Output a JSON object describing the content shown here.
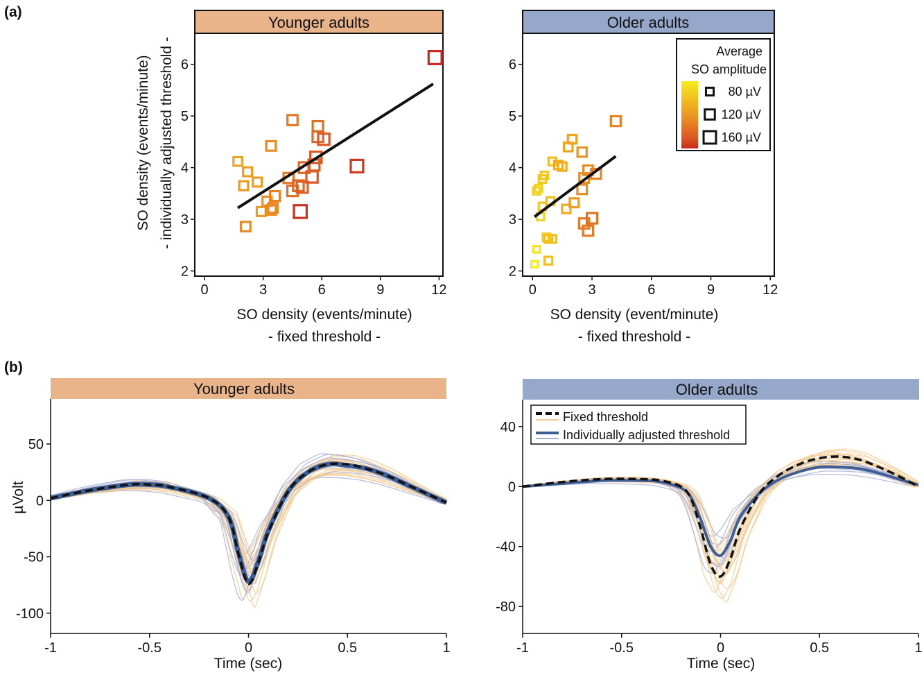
{
  "panel_labels": {
    "a": "(a)",
    "b": "(b)"
  },
  "colors": {
    "younger_banner": "#E9B48A",
    "older_banner": "#95A8C9",
    "fixed_line": "#111111",
    "adjusted_line": "#3E5F95",
    "fixed_faint": "#F2C98F",
    "adjusted_faint": "#A9AED6",
    "colormap": [
      "#F7EC1C",
      "#F0B91E",
      "#E98623",
      "#DC5523",
      "#C8281F"
    ]
  },
  "legend_a": {
    "title_line1": "Average",
    "title_line2": "SO amplitude",
    "entries": [
      {
        "label": "80 µV",
        "amplitude": 80
      },
      {
        "label": "120 µV",
        "amplitude": 120
      },
      {
        "label": "160 µV",
        "amplitude": 160
      }
    ]
  },
  "legend_b": {
    "fixed": "Fixed threshold",
    "adjusted": "Individually adjusted threshold"
  },
  "chart_data": [
    {
      "type": "scatter",
      "title": "Younger adults",
      "xlabel_line1": "SO density (events/minute)",
      "xlabel_line2": "- fixed threshold -",
      "ylabel_line1": "SO density (events/minute)",
      "ylabel_line2": "- individually adjusted threshold -",
      "xlim": [
        -0.5,
        12.2
      ],
      "ylim": [
        1.9,
        6.6
      ],
      "xticks": [
        0,
        3,
        6,
        9,
        12
      ],
      "yticks": [
        2,
        3,
        4,
        5,
        6
      ],
      "fit_line": {
        "x": [
          1.7,
          11.7
        ],
        "y": [
          3.22,
          5.62
        ]
      },
      "points": [
        {
          "x": 1.7,
          "y": 4.12,
          "amp": 95
        },
        {
          "x": 2.0,
          "y": 3.65,
          "amp": 100
        },
        {
          "x": 2.2,
          "y": 3.92,
          "amp": 100
        },
        {
          "x": 2.7,
          "y": 3.72,
          "amp": 100
        },
        {
          "x": 2.1,
          "y": 2.86,
          "amp": 110
        },
        {
          "x": 2.9,
          "y": 3.15,
          "amp": 100
        },
        {
          "x": 3.2,
          "y": 3.35,
          "amp": 105
        },
        {
          "x": 3.4,
          "y": 3.18,
          "amp": 110
        },
        {
          "x": 3.5,
          "y": 3.22,
          "amp": 110
        },
        {
          "x": 3.6,
          "y": 3.45,
          "amp": 115
        },
        {
          "x": 3.4,
          "y": 4.42,
          "amp": 110
        },
        {
          "x": 4.3,
          "y": 3.8,
          "amp": 120
        },
        {
          "x": 4.5,
          "y": 4.92,
          "amp": 120
        },
        {
          "x": 4.5,
          "y": 3.55,
          "amp": 125
        },
        {
          "x": 4.8,
          "y": 3.65,
          "amp": 130
        },
        {
          "x": 5.0,
          "y": 3.62,
          "amp": 135
        },
        {
          "x": 5.1,
          "y": 4.0,
          "amp": 130
        },
        {
          "x": 5.5,
          "y": 3.82,
          "amp": 140
        },
        {
          "x": 5.6,
          "y": 4.05,
          "amp": 135
        },
        {
          "x": 5.7,
          "y": 4.2,
          "amp": 140
        },
        {
          "x": 5.8,
          "y": 4.8,
          "amp": 125
        },
        {
          "x": 5.8,
          "y": 4.6,
          "amp": 130
        },
        {
          "x": 6.1,
          "y": 4.55,
          "amp": 140
        },
        {
          "x": 4.9,
          "y": 3.15,
          "amp": 165
        },
        {
          "x": 7.8,
          "y": 4.03,
          "amp": 160
        },
        {
          "x": 11.8,
          "y": 6.13,
          "amp": 170
        }
      ]
    },
    {
      "type": "scatter",
      "title": "Older adults",
      "xlabel_line1": "SO density (event/minute)",
      "xlabel_line2": "- fixed threshold -",
      "xlim": [
        -0.5,
        12.2
      ],
      "ylim": [
        1.9,
        6.6
      ],
      "xticks": [
        0,
        3,
        6,
        9,
        12
      ],
      "yticks": [
        2,
        3,
        4,
        5,
        6
      ],
      "fit_line": {
        "x": [
          0.1,
          4.2
        ],
        "y": [
          3.05,
          4.22
        ]
      },
      "points": [
        {
          "x": 0.1,
          "y": 2.13,
          "amp": 55
        },
        {
          "x": 0.2,
          "y": 2.42,
          "amp": 60
        },
        {
          "x": 0.2,
          "y": 3.55,
          "amp": 70
        },
        {
          "x": 0.3,
          "y": 3.6,
          "amp": 70
        },
        {
          "x": 0.4,
          "y": 3.05,
          "amp": 70
        },
        {
          "x": 0.5,
          "y": 3.78,
          "amp": 75
        },
        {
          "x": 0.5,
          "y": 3.25,
          "amp": 75
        },
        {
          "x": 0.6,
          "y": 3.85,
          "amp": 75
        },
        {
          "x": 0.7,
          "y": 2.65,
          "amp": 75
        },
        {
          "x": 0.8,
          "y": 2.62,
          "amp": 80
        },
        {
          "x": 0.8,
          "y": 2.2,
          "amp": 80
        },
        {
          "x": 0.9,
          "y": 3.35,
          "amp": 80
        },
        {
          "x": 1.0,
          "y": 2.62,
          "amp": 80
        },
        {
          "x": 1.0,
          "y": 4.12,
          "amp": 80
        },
        {
          "x": 1.3,
          "y": 4.05,
          "amp": 90
        },
        {
          "x": 1.5,
          "y": 4.02,
          "amp": 90
        },
        {
          "x": 1.7,
          "y": 3.2,
          "amp": 90
        },
        {
          "x": 1.8,
          "y": 4.4,
          "amp": 95
        },
        {
          "x": 2.0,
          "y": 4.55,
          "amp": 95
        },
        {
          "x": 2.1,
          "y": 3.32,
          "amp": 100
        },
        {
          "x": 2.5,
          "y": 4.3,
          "amp": 105
        },
        {
          "x": 2.5,
          "y": 3.58,
          "amp": 110
        },
        {
          "x": 2.6,
          "y": 3.8,
          "amp": 110
        },
        {
          "x": 2.6,
          "y": 2.92,
          "amp": 120
        },
        {
          "x": 2.8,
          "y": 3.95,
          "amp": 110
        },
        {
          "x": 2.8,
          "y": 2.78,
          "amp": 120
        },
        {
          "x": 3.0,
          "y": 3.02,
          "amp": 125
        },
        {
          "x": 3.2,
          "y": 3.88,
          "amp": 115
        },
        {
          "x": 4.2,
          "y": 4.9,
          "amp": 115
        }
      ]
    },
    {
      "type": "line",
      "title": "Younger adults",
      "xlabel": "Time (sec)",
      "ylabel": "µVolt",
      "xlim": [
        -1,
        1
      ],
      "ylim": [
        -118,
        90
      ],
      "xticks": [
        -1,
        -0.5,
        0,
        0.5,
        1
      ],
      "yticks": [
        50,
        0,
        -50,
        -100
      ],
      "xtick_labels": [
        "-1",
        "-0.5",
        "0",
        "0.5",
        "1"
      ],
      "ytick_labels": [
        "50",
        "0",
        "-50",
        "-100"
      ],
      "x": [
        -1.0,
        -0.8,
        -0.6,
        -0.5,
        -0.4,
        -0.2,
        -0.1,
        -0.05,
        0.0,
        0.05,
        0.1,
        0.2,
        0.3,
        0.4,
        0.5,
        0.6,
        0.7,
        0.8,
        0.9,
        1.0
      ],
      "series": [
        {
          "name": "Fixed threshold",
          "values": [
            2,
            9,
            14,
            14,
            12,
            2,
            -15,
            -48,
            -74,
            -55,
            -28,
            8,
            25,
            32,
            32,
            28,
            22,
            14,
            6,
            -2
          ]
        },
        {
          "name": "Individually adjusted threshold",
          "values": [
            2,
            9,
            14,
            14,
            12,
            2,
            -15,
            -47,
            -72,
            -54,
            -27,
            8,
            25,
            32,
            31,
            28,
            22,
            14,
            6,
            -2
          ]
        }
      ]
    },
    {
      "type": "line",
      "title": "Older adults",
      "xlabel": "Time (sec)",
      "xlim": [
        -1,
        1
      ],
      "ylim": [
        -98,
        58
      ],
      "xticks": [
        -1,
        -0.5,
        0,
        0.5,
        1
      ],
      "yticks": [
        40,
        0,
        -40,
        -80
      ],
      "xtick_labels": [
        "-1",
        "-0.5",
        "0",
        "0.5",
        "1"
      ],
      "ytick_labels": [
        "40",
        "0",
        "-40",
        "-80"
      ],
      "x": [
        -1.0,
        -0.8,
        -0.6,
        -0.4,
        -0.3,
        -0.2,
        -0.15,
        -0.1,
        -0.05,
        0.0,
        0.05,
        0.1,
        0.2,
        0.3,
        0.4,
        0.5,
        0.6,
        0.7,
        0.8,
        0.9,
        1.0
      ],
      "series": [
        {
          "name": "Fixed threshold",
          "values": [
            0,
            3,
            5,
            5,
            4,
            0,
            -8,
            -28,
            -52,
            -60,
            -48,
            -28,
            -4,
            8,
            15,
            19,
            20,
            18,
            13,
            7,
            0
          ]
        },
        {
          "name": "Individually adjusted threshold",
          "values": [
            0,
            2,
            4,
            4,
            3,
            -1,
            -7,
            -22,
            -40,
            -46,
            -36,
            -20,
            -4,
            5,
            10,
            13,
            13,
            12,
            9,
            5,
            1
          ]
        }
      ]
    }
  ]
}
